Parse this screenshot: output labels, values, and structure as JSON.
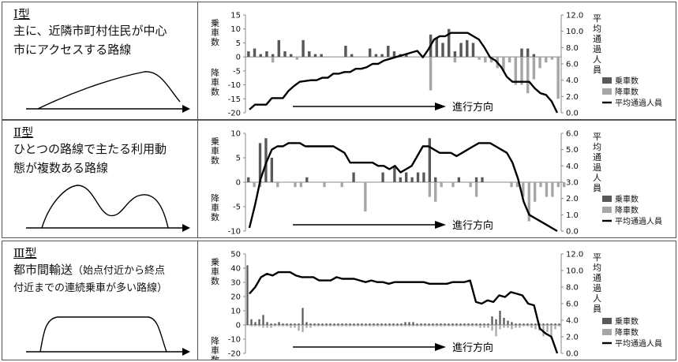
{
  "colors": {
    "boarding": "#595959",
    "alighting": "#a6a6a6",
    "line": "#000000"
  },
  "legend": {
    "boarding": "乗車数",
    "alighting": "降車数",
    "avg": "平均通過人員"
  },
  "axis_labels": {
    "left_top": "乗車数",
    "left_bottom": "降車数",
    "right": "平均通過人員",
    "direction": "進行方向"
  },
  "rows": [
    {
      "type_label": "Ⅰ型",
      "description_lines": [
        "主に、近隣市町村住民が中心",
        "市にアクセスする路線"
      ],
      "shape_icon": "single-hump-curve"
    },
    {
      "type_label": "Ⅱ型",
      "description_lines": [
        "ひとつの路線で主たる利用動",
        "態が複数ある路線"
      ],
      "shape_icon": "double-hump-curve"
    },
    {
      "type_label": "Ⅲ型",
      "description_lines": [
        "都市間輸送",
        "付近までの連続乗車が多い路線）"
      ],
      "description_note": "（始点付近から終点",
      "shape_icon": "plateau-curve"
    }
  ],
  "chart_data": [
    {
      "type": "bar",
      "title": "Ⅰ型",
      "ylim": [
        -20,
        15
      ],
      "yticks": [
        15,
        10,
        5,
        0,
        -5,
        -10,
        -15,
        -20
      ],
      "y2lim": [
        0,
        12
      ],
      "y2ticks": [
        "12.0",
        "10.0",
        "8.0",
        "6.0",
        "4.0",
        "2.0",
        "0.0"
      ],
      "boarding": [
        2,
        3,
        1,
        2,
        1,
        6,
        2,
        1,
        0,
        6,
        2,
        1,
        1,
        0,
        0,
        0,
        4,
        1,
        0,
        0,
        3,
        1,
        1,
        4,
        2,
        1,
        1,
        0,
        0,
        0,
        8,
        7,
        5,
        10,
        2,
        5,
        6,
        5,
        0,
        0,
        0,
        0,
        0,
        0,
        0,
        3,
        3,
        1,
        0,
        0,
        0,
        0
      ],
      "alighting": [
        0,
        0,
        0,
        0,
        -2,
        0,
        0,
        0,
        -1,
        0,
        0,
        0,
        0,
        0,
        0,
        0,
        0,
        0,
        0,
        0,
        0,
        0,
        0,
        0,
        0,
        0,
        0,
        0,
        0,
        0,
        -12,
        0,
        0,
        0,
        -2,
        0,
        0,
        0,
        -1,
        -2,
        -2,
        -4,
        -5,
        -2,
        -10,
        -10,
        -13,
        -8,
        -4,
        -2,
        -1,
        -15
      ],
      "avg": [
        0.4,
        1.0,
        1.0,
        1.0,
        1.8,
        1.8,
        1.8,
        2.7,
        3.3,
        3.8,
        3.9,
        4.0,
        4.0,
        4.3,
        4.3,
        4.8,
        4.8,
        5.0,
        5.0,
        5.4,
        5.4,
        5.6,
        6.0,
        6.0,
        6.4,
        6.6,
        6.8,
        7.0,
        7.2,
        7.4,
        7.6,
        6.8,
        7.8,
        9.0,
        9.4,
        9.4,
        9.8,
        9.8,
        9.8,
        9.8,
        9.4,
        9.0,
        8.0,
        6.8,
        6.4,
        5.6,
        4.4,
        3.8,
        3.8,
        3.8,
        3.8,
        3.0,
        2.4,
        2.2,
        1.4,
        0.0
      ]
    },
    {
      "type": "bar",
      "title": "Ⅱ型",
      "ylim": [
        -10,
        10
      ],
      "yticks": [
        10,
        5,
        0,
        -5,
        -10
      ],
      "y2lim": [
        0,
        6
      ],
      "y2ticks": [
        "6.0",
        "5.0",
        "4.0",
        "3.0",
        "2.0",
        "1.0",
        "0.0"
      ],
      "boarding": [
        1,
        0,
        8,
        9,
        5,
        0,
        0,
        0,
        0,
        0,
        1,
        0,
        0,
        0,
        0,
        0,
        0,
        0,
        2,
        0,
        0,
        0,
        0,
        2,
        0,
        3,
        1,
        2,
        1,
        2,
        2,
        9,
        1,
        0,
        0,
        0,
        1,
        0,
        0,
        1,
        1,
        0,
        0,
        0,
        0,
        0,
        0,
        0,
        0,
        0,
        0,
        0,
        0,
        0
      ],
      "alighting": [
        0,
        -1,
        -1,
        0,
        0,
        -1,
        0,
        0,
        -1,
        -1,
        0,
        0,
        0,
        -1,
        0,
        0,
        -1,
        0,
        0,
        0,
        -6,
        0,
        0,
        0,
        0,
        0,
        0,
        0,
        0,
        0,
        0,
        -3,
        -4,
        -1,
        0,
        -1,
        0,
        0,
        -1,
        -3,
        0,
        0,
        0,
        0,
        0,
        -1,
        -1,
        -3,
        -8,
        -4,
        -1,
        -3,
        -3,
        -1,
        -1
      ],
      "avg": [
        0.2,
        1.6,
        3.2,
        4.2,
        5.0,
        5.2,
        5.2,
        5.4,
        5.4,
        5.4,
        5.2,
        5.2,
        5.2,
        5.2,
        5.2,
        5.2,
        5.0,
        4.8,
        4.2,
        4.2,
        4.2,
        4.2,
        4.2,
        4.0,
        4.0,
        3.8,
        4.0,
        3.6,
        3.8,
        4.0,
        4.6,
        5.2,
        5.2,
        5.0,
        4.8,
        4.8,
        4.8,
        4.6,
        4.8,
        5.0,
        5.2,
        5.4,
        5.4,
        5.4,
        5.2,
        5.0,
        4.8,
        4.2,
        3.2,
        1.8,
        1.0,
        0.8,
        0.6,
        0.4,
        0.2,
        0.0
      ]
    },
    {
      "type": "bar",
      "title": "Ⅲ型",
      "ylim": [
        -20,
        50
      ],
      "yticks": [
        50,
        40,
        30,
        20,
        10,
        0,
        -10,
        -20
      ],
      "y2lim": [
        0,
        12
      ],
      "y2ticks": [
        "12.0",
        "10.0",
        "8.0",
        "6.0",
        "4.0",
        "2.0",
        "0.0"
      ],
      "boarding": [
        42,
        4,
        2,
        4,
        7,
        2,
        1,
        1,
        2,
        1,
        1,
        1,
        1,
        1,
        12,
        2,
        1,
        1,
        1,
        1,
        1,
        1,
        1,
        1,
        1,
        1,
        1,
        1,
        1,
        1,
        1,
        1,
        1,
        1,
        1,
        1,
        1,
        1,
        1,
        1,
        2,
        2,
        2,
        1,
        1,
        1,
        1,
        1,
        1,
        1,
        1,
        1,
        1,
        1,
        1,
        1,
        1,
        1,
        1,
        1,
        1,
        1,
        6,
        4,
        10,
        5,
        3,
        2,
        1,
        1,
        1,
        1,
        1,
        1,
        1,
        1,
        1,
        1,
        1,
        1
      ],
      "alighting": [
        0,
        -1,
        -1,
        -1,
        -2,
        -2,
        -2,
        -1,
        -1,
        -1,
        -1,
        -2,
        -2,
        -4,
        -5,
        -2,
        -2,
        -1,
        -1,
        -1,
        -1,
        -1,
        -1,
        -1,
        -1,
        -1,
        -1,
        -1,
        -1,
        -1,
        -1,
        -1,
        -1,
        -1,
        -1,
        -1,
        -1,
        -1,
        -1,
        -1,
        -1,
        -1,
        -1,
        -1,
        -1,
        -1,
        -1,
        -1,
        -1,
        -1,
        -1,
        -1,
        -1,
        -1,
        -1,
        -1,
        -1,
        -1,
        -1,
        -2,
        -2,
        -2,
        -4,
        -8,
        -3,
        -2,
        -2,
        -3,
        -2,
        -2,
        -1,
        -1,
        -2,
        -3,
        -4,
        -8,
        -5,
        -10,
        -3,
        -1
      ],
      "avg": [
        7.2,
        8.0,
        9.2,
        9.6,
        9.4,
        9.8,
        9.8,
        9.8,
        9.4,
        9.2,
        9.2,
        9.2,
        8.8,
        8.8,
        8.8,
        9.2,
        9.0,
        9.0,
        9.0,
        8.8,
        8.6,
        8.8,
        8.6,
        8.6,
        8.4,
        8.6,
        8.6,
        8.6,
        8.6,
        8.6,
        8.6,
        8.4,
        8.4,
        8.4,
        8.4,
        8.6,
        8.6,
        8.6,
        8.8,
        6.2,
        6.0,
        6.4,
        6.2,
        7.0,
        6.8,
        7.4,
        7.2,
        7.0,
        6.0,
        5.8,
        3.0,
        2.4,
        2.0,
        0.0
      ]
    }
  ]
}
